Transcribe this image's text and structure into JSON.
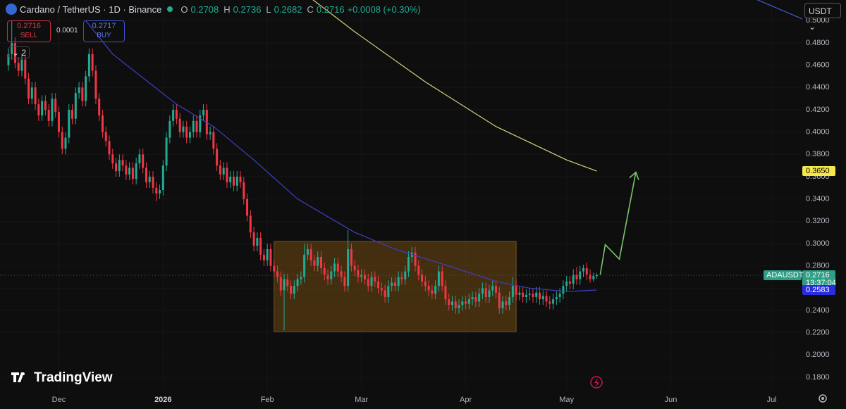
{
  "chart_data": {
    "type": "candlestick",
    "header": {
      "symbol": "Cardano / TetherUS · 1D · Binance",
      "o_label": "O",
      "o": "0.2708",
      "h_label": "H",
      "h": "0.2736",
      "l_label": "L",
      "l": "0.2682",
      "c_label": "C",
      "c": "0.2716",
      "change": "+0.0008 (+0.30%)"
    },
    "sell_price": "0.2716",
    "sell": "SELL",
    "spread": "0.0001",
    "buy_price": "0.2717",
    "buy": "BUY",
    "indicators": "2",
    "currency": "USDT",
    "logo": "TradingView",
    "up_color": "#22ab94",
    "down_color": "#f23645",
    "open": [
      0.46,
      0.47,
      0.48,
      0.462,
      0.455,
      0.465,
      0.448,
      0.43,
      0.44,
      0.425,
      0.415,
      0.428,
      0.42,
      0.41,
      0.43,
      0.418,
      0.4,
      0.385,
      0.395,
      0.42,
      0.412,
      0.435,
      0.44,
      0.428,
      0.45,
      0.47,
      0.455,
      0.43,
      0.415,
      0.4,
      0.392,
      0.38,
      0.372,
      0.365,
      0.375,
      0.37,
      0.362,
      0.368,
      0.358,
      0.372,
      0.38,
      0.368,
      0.355,
      0.36,
      0.35,
      0.345,
      0.348,
      0.37,
      0.395,
      0.41,
      0.42,
      0.412,
      0.4,
      0.405,
      0.395,
      0.4,
      0.41,
      0.4,
      0.415,
      0.42,
      0.398,
      0.4,
      0.385,
      0.37,
      0.362,
      0.368,
      0.355,
      0.36,
      0.352,
      0.36,
      0.355,
      0.34,
      0.325,
      0.31,
      0.298,
      0.305,
      0.29,
      0.285,
      0.295,
      0.28,
      0.275,
      0.27,
      0.258,
      0.268,
      0.262,
      0.255,
      0.262,
      0.268,
      0.27,
      0.29,
      0.295,
      0.285,
      0.28,
      0.288,
      0.278,
      0.272,
      0.268,
      0.275,
      0.282,
      0.275,
      0.27,
      0.262,
      0.295,
      0.28,
      0.276,
      0.27,
      0.272,
      0.268,
      0.262,
      0.27,
      0.266,
      0.26,
      0.258,
      0.252,
      0.262,
      0.265,
      0.262,
      0.27,
      0.268,
      0.275,
      0.288,
      0.292,
      0.28,
      0.272,
      0.266,
      0.262,
      0.258,
      0.255,
      0.262,
      0.275,
      0.262,
      0.25,
      0.245,
      0.248,
      0.242,
      0.245,
      0.248,
      0.246,
      0.25,
      0.252,
      0.248,
      0.255,
      0.26,
      0.252,
      0.258,
      0.262,
      0.256,
      0.242,
      0.248,
      0.245,
      0.252,
      0.262,
      0.254,
      0.256,
      0.252,
      0.254,
      0.255,
      0.252,
      0.256,
      0.25,
      0.253,
      0.248,
      0.246,
      0.25,
      0.252,
      0.255,
      0.262,
      0.266,
      0.264,
      0.272,
      0.268,
      0.275,
      0.278,
      0.272,
      0.268,
      0.2708
    ],
    "high": [
      0.475,
      0.5,
      0.485,
      0.467,
      0.47,
      0.47,
      0.453,
      0.445,
      0.445,
      0.43,
      0.433,
      0.433,
      0.425,
      0.435,
      0.435,
      0.423,
      0.405,
      0.4,
      0.425,
      0.425,
      0.44,
      0.445,
      0.445,
      0.455,
      0.475,
      0.475,
      0.46,
      0.435,
      0.42,
      0.405,
      0.397,
      0.385,
      0.377,
      0.38,
      0.38,
      0.375,
      0.373,
      0.373,
      0.377,
      0.385,
      0.385,
      0.373,
      0.365,
      0.365,
      0.355,
      0.353,
      0.375,
      0.4,
      0.415,
      0.425,
      0.425,
      0.417,
      0.41,
      0.41,
      0.405,
      0.415,
      0.415,
      0.42,
      0.425,
      0.425,
      0.405,
      0.405,
      0.39,
      0.375,
      0.373,
      0.373,
      0.365,
      0.365,
      0.365,
      0.365,
      0.36,
      0.345,
      0.33,
      0.315,
      0.31,
      0.31,
      0.295,
      0.3,
      0.3,
      0.285,
      0.28,
      0.275,
      0.273,
      0.273,
      0.267,
      0.267,
      0.273,
      0.275,
      0.3,
      0.3,
      0.3,
      0.29,
      0.293,
      0.293,
      0.283,
      0.277,
      0.28,
      0.287,
      0.287,
      0.28,
      0.275,
      0.312,
      0.3,
      0.285,
      0.281,
      0.277,
      0.277,
      0.273,
      0.275,
      0.275,
      0.271,
      0.265,
      0.263,
      0.267,
      0.27,
      0.27,
      0.275,
      0.275,
      0.28,
      0.293,
      0.297,
      0.297,
      0.285,
      0.277,
      0.271,
      0.267,
      0.263,
      0.267,
      0.28,
      0.28,
      0.267,
      0.255,
      0.253,
      0.253,
      0.25,
      0.253,
      0.253,
      0.255,
      0.257,
      0.257,
      0.26,
      0.265,
      0.265,
      0.263,
      0.267,
      0.267,
      0.261,
      0.253,
      0.253,
      0.257,
      0.27,
      0.267,
      0.261,
      0.261,
      0.259,
      0.26,
      0.26,
      0.261,
      0.261,
      0.258,
      0.258,
      0.253,
      0.255,
      0.257,
      0.26,
      0.267,
      0.271,
      0.271,
      0.277,
      0.279,
      0.28,
      0.281,
      0.283,
      0.277,
      0.274,
      0.2736
    ],
    "low": [
      0.455,
      0.465,
      0.457,
      0.45,
      0.45,
      0.443,
      0.425,
      0.425,
      0.42,
      0.41,
      0.41,
      0.415,
      0.405,
      0.405,
      0.413,
      0.395,
      0.38,
      0.38,
      0.39,
      0.407,
      0.407,
      0.43,
      0.423,
      0.423,
      0.445,
      0.45,
      0.425,
      0.41,
      0.395,
      0.387,
      0.375,
      0.367,
      0.36,
      0.36,
      0.365,
      0.357,
      0.357,
      0.353,
      0.353,
      0.367,
      0.363,
      0.35,
      0.35,
      0.345,
      0.338,
      0.34,
      0.343,
      0.365,
      0.39,
      0.405,
      0.407,
      0.395,
      0.395,
      0.39,
      0.39,
      0.395,
      0.395,
      0.395,
      0.41,
      0.393,
      0.393,
      0.38,
      0.365,
      0.357,
      0.357,
      0.35,
      0.35,
      0.347,
      0.347,
      0.35,
      0.335,
      0.32,
      0.305,
      0.293,
      0.293,
      0.285,
      0.28,
      0.28,
      0.275,
      0.27,
      0.265,
      0.253,
      0.222,
      0.257,
      0.25,
      0.25,
      0.257,
      0.263,
      0.265,
      0.285,
      0.28,
      0.275,
      0.275,
      0.273,
      0.267,
      0.263,
      0.263,
      0.27,
      0.27,
      0.265,
      0.257,
      0.257,
      0.275,
      0.271,
      0.265,
      0.265,
      0.263,
      0.257,
      0.257,
      0.261,
      0.255,
      0.253,
      0.247,
      0.247,
      0.257,
      0.257,
      0.257,
      0.263,
      0.263,
      0.27,
      0.283,
      0.275,
      0.267,
      0.261,
      0.257,
      0.253,
      0.25,
      0.25,
      0.257,
      0.257,
      0.245,
      0.24,
      0.24,
      0.237,
      0.237,
      0.24,
      0.241,
      0.241,
      0.245,
      0.243,
      0.243,
      0.25,
      0.247,
      0.247,
      0.253,
      0.251,
      0.237,
      0.237,
      0.24,
      0.24,
      0.247,
      0.249,
      0.249,
      0.247,
      0.247,
      0.249,
      0.247,
      0.247,
      0.245,
      0.245,
      0.243,
      0.241,
      0.241,
      0.245,
      0.247,
      0.25,
      0.257,
      0.259,
      0.259,
      0.263,
      0.263,
      0.27,
      0.267,
      0.265,
      0.266,
      0.2682
    ],
    "close": [
      0.47,
      0.48,
      0.462,
      0.455,
      0.465,
      0.448,
      0.43,
      0.44,
      0.425,
      0.415,
      0.428,
      0.42,
      0.41,
      0.43,
      0.418,
      0.4,
      0.385,
      0.395,
      0.42,
      0.412,
      0.435,
      0.44,
      0.428,
      0.45,
      0.47,
      0.455,
      0.43,
      0.415,
      0.4,
      0.392,
      0.38,
      0.372,
      0.365,
      0.375,
      0.37,
      0.362,
      0.368,
      0.358,
      0.372,
      0.38,
      0.368,
      0.355,
      0.36,
      0.35,
      0.345,
      0.348,
      0.37,
      0.395,
      0.41,
      0.42,
      0.412,
      0.4,
      0.405,
      0.395,
      0.4,
      0.41,
      0.4,
      0.415,
      0.42,
      0.398,
      0.4,
      0.385,
      0.37,
      0.362,
      0.368,
      0.355,
      0.36,
      0.352,
      0.36,
      0.355,
      0.34,
      0.325,
      0.31,
      0.298,
      0.305,
      0.29,
      0.285,
      0.295,
      0.28,
      0.275,
      0.27,
      0.258,
      0.268,
      0.262,
      0.255,
      0.262,
      0.268,
      0.27,
      0.29,
      0.295,
      0.285,
      0.28,
      0.288,
      0.278,
      0.272,
      0.268,
      0.275,
      0.282,
      0.275,
      0.27,
      0.262,
      0.295,
      0.28,
      0.276,
      0.27,
      0.272,
      0.268,
      0.262,
      0.27,
      0.266,
      0.26,
      0.258,
      0.252,
      0.262,
      0.265,
      0.262,
      0.27,
      0.268,
      0.275,
      0.288,
      0.292,
      0.28,
      0.272,
      0.266,
      0.262,
      0.258,
      0.255,
      0.262,
      0.275,
      0.262,
      0.25,
      0.245,
      0.248,
      0.242,
      0.245,
      0.248,
      0.246,
      0.25,
      0.252,
      0.248,
      0.255,
      0.26,
      0.252,
      0.258,
      0.262,
      0.256,
      0.242,
      0.248,
      0.245,
      0.252,
      0.262,
      0.254,
      0.256,
      0.252,
      0.254,
      0.255,
      0.252,
      0.256,
      0.25,
      0.253,
      0.248,
      0.246,
      0.25,
      0.252,
      0.255,
      0.262,
      0.266,
      0.264,
      0.272,
      0.268,
      0.275,
      0.278,
      0.272,
      0.268,
      0.2708,
      0.2716
    ],
    "lines": [
      {
        "color": "#3f3fc9",
        "x": [
          23,
          31,
          50,
          61,
          73,
          86,
          103,
          115,
          134,
          145,
          155,
          166,
          175
        ],
        "values": [
          0.5,
          0.47,
          0.425,
          0.405,
          0.375,
          0.34,
          0.31,
          0.295,
          0.277,
          0.266,
          0.26,
          0.257,
          0.2583
        ]
      },
      {
        "color": "#3f5fd9",
        "x": [
          221.7,
          236.5
        ],
        "values": [
          0.52,
          0.501
        ]
      },
      {
        "color": "#d8d27a",
        "x": [
          90,
          103,
          124,
          145,
          166,
          175
        ],
        "values": [
          0.52,
          0.49,
          0.445,
          0.405,
          0.375,
          0.365
        ]
      },
      {
        "color": "#7ac46a",
        "x": [
          176,
          177.5,
          181.7,
          186.6
        ],
        "values": [
          0.272,
          0.299,
          0.286,
          0.364
        ],
        "arrow": true
      }
    ],
    "box": {
      "x": [
        79,
        151
      ],
      "range": [
        0.221,
        0.302
      ]
    },
    "xlim": [
      -2.5,
      236.1
    ],
    "ylim": [
      0.168,
      0.5185
    ],
    "xticks": [
      {
        "value": 15,
        "label": "Dec"
      },
      {
        "value": 46,
        "label": "2026"
      },
      {
        "value": 77,
        "label": "Feb"
      },
      {
        "value": 105,
        "label": "Mar"
      },
      {
        "value": 136,
        "label": "Apr"
      },
      {
        "value": 166,
        "label": "May"
      },
      {
        "value": 197,
        "label": "Jun"
      },
      {
        "value": 227,
        "label": "Jul"
      }
    ],
    "yticks": [
      {
        "value": 0.18,
        "label": "0.1800"
      },
      {
        "value": 0.2,
        "label": "0.2000"
      },
      {
        "value": 0.22,
        "label": "0.2200"
      },
      {
        "value": 0.24,
        "label": "0.2400"
      },
      {
        "value": 0.26,
        "label": "0.2600"
      },
      {
        "value": 0.28,
        "label": "0.2800"
      },
      {
        "value": 0.3,
        "label": "0.3000"
      },
      {
        "value": 0.32,
        "label": "0.3200"
      },
      {
        "value": 0.34,
        "label": "0.3400"
      },
      {
        "value": 0.36,
        "label": "0.3600"
      },
      {
        "value": 0.38,
        "label": "0.3800"
      },
      {
        "value": 0.4,
        "label": "0.4000"
      },
      {
        "value": 0.42,
        "label": "0.4200"
      },
      {
        "value": 0.44,
        "label": "0.4400"
      },
      {
        "value": 0.46,
        "label": "0.4600"
      },
      {
        "value": 0.48,
        "label": "0.4800"
      },
      {
        "value": 0.5,
        "label": "0.5000"
      }
    ],
    "price_labels": [
      {
        "value": 0.365,
        "label": "0.3650",
        "color": "#f5e84a"
      },
      {
        "value": 0.2716,
        "label": "0.2716",
        "color": "#2f9e86",
        "symbol": "ADAUSDT",
        "countdown": "13:37:04"
      },
      {
        "value": 0.2583,
        "label": "0.2583",
        "color": "#2b2bdf"
      }
    ]
  }
}
